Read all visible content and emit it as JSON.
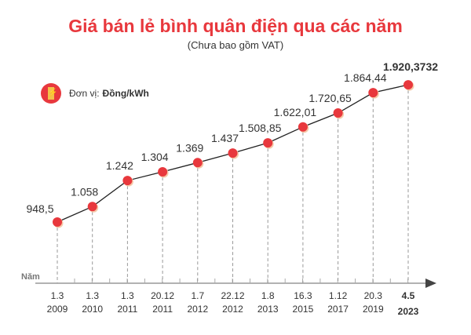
{
  "header": {
    "title": "Giá bán lẻ bình quân điện qua các năm",
    "subtitle": "(Chưa bao gồm VAT)"
  },
  "unit": {
    "label": "Đơn vị:",
    "value": "Đồng/kWh",
    "icon": "lightning-bolt-icon"
  },
  "colors": {
    "accent": "#e8383d",
    "line": "#222222",
    "axis": "#999999"
  },
  "chart_data": {
    "type": "line",
    "title": "Giá bán lẻ bình quân điện qua các năm",
    "subtitle": "(Chưa bao gồm VAT)",
    "xlabel": "Năm",
    "ylabel": "",
    "grid": false,
    "categories": [
      {
        "date": "1.3",
        "year": "2009"
      },
      {
        "date": "1.3",
        "year": "2010"
      },
      {
        "date": "1.3",
        "year": "2011"
      },
      {
        "date": "20.12",
        "year": "2011"
      },
      {
        "date": "1.7",
        "year": "2012"
      },
      {
        "date": "22.12",
        "year": "2012"
      },
      {
        "date": "1.8",
        "year": "2013"
      },
      {
        "date": "16.3",
        "year": "2015"
      },
      {
        "date": "1.12",
        "year": "2017"
      },
      {
        "date": "20.3",
        "year": "2019"
      },
      {
        "date": "4.5",
        "year": "2023"
      }
    ],
    "values": [
      948.5,
      1058,
      1242,
      1304,
      1369,
      1437,
      1508.85,
      1622.01,
      1720.65,
      1864.44,
      1920.3732
    ],
    "labels": [
      "948,5",
      "1.058",
      "1.242",
      "1.304",
      "1.369",
      "1.437",
      "1.508,85",
      "1.622,01",
      "1.720,65",
      "1.864,44",
      "1.920,3732"
    ],
    "highlight_last": true
  }
}
